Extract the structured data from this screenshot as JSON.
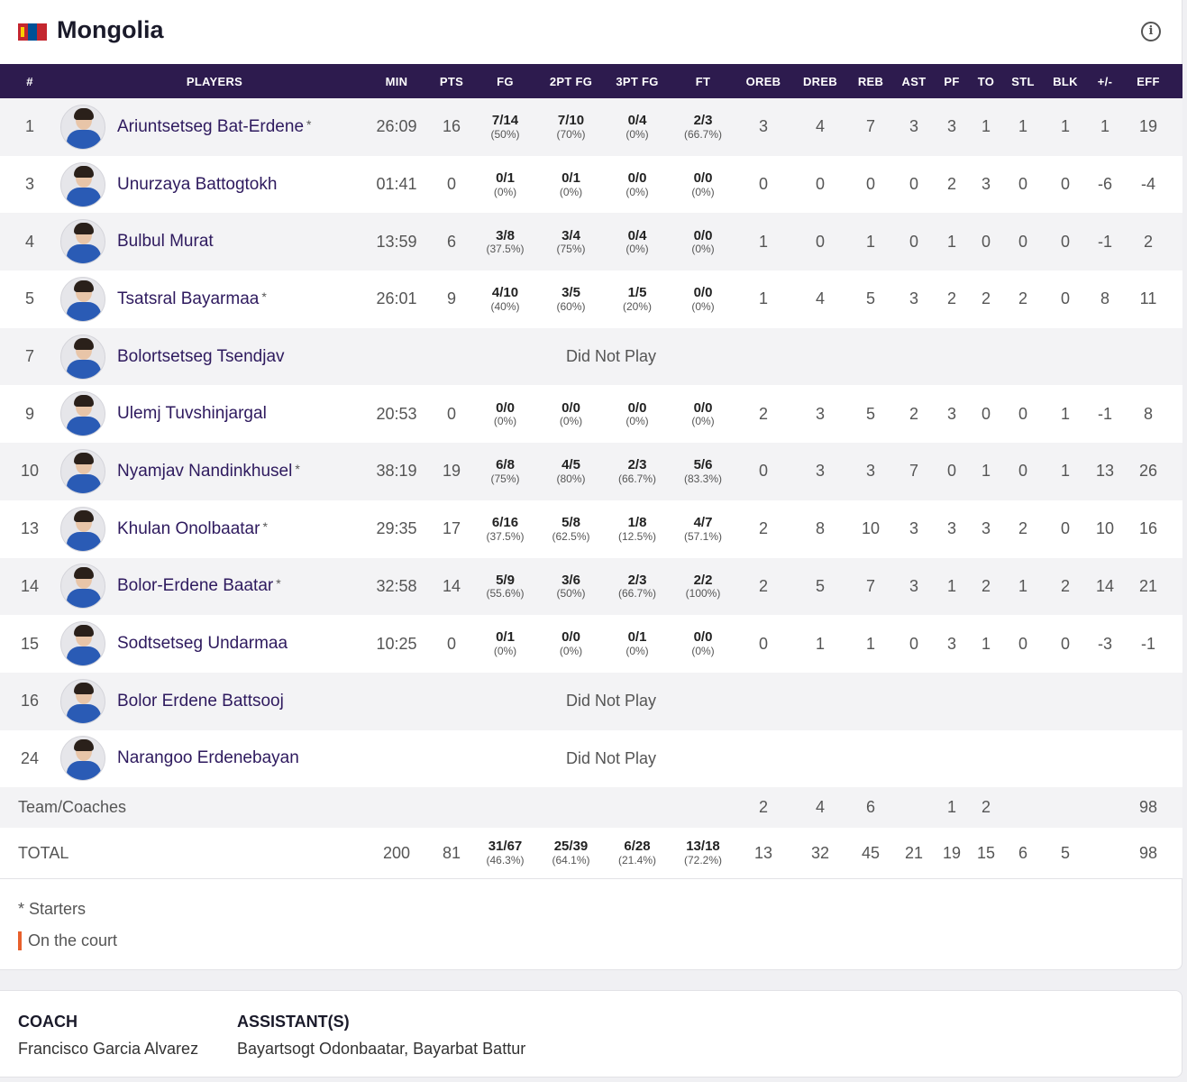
{
  "team": {
    "name": "Mongolia",
    "flag_icon": "mongolia-flag-icon",
    "info_icon": "info-icon"
  },
  "columns": [
    "#",
    "PLAYERS",
    "MIN",
    "PTS",
    "FG",
    "2PT FG",
    "3PT FG",
    "FT",
    "OREB",
    "DREB",
    "REB",
    "AST",
    "PF",
    "TO",
    "STL",
    "BLK",
    "+/-",
    "EFF"
  ],
  "players": [
    {
      "no": "1",
      "name": "Ariuntsetseg Bat-Erdene",
      "starter": "*",
      "dnp": false,
      "min": "26:09",
      "pts": "16",
      "fg": "7/14",
      "fg_pct": "(50%)",
      "p2": "7/10",
      "p2_pct": "(70%)",
      "p3": "0/4",
      "p3_pct": "(0%)",
      "ft": "2/3",
      "ft_pct": "(66.7%)",
      "oreb": "3",
      "dreb": "4",
      "reb": "7",
      "ast": "3",
      "pf": "3",
      "to": "1",
      "stl": "1",
      "blk": "1",
      "pm": "1",
      "eff": "19"
    },
    {
      "no": "3",
      "name": "Unurzaya Battogtokh",
      "starter": "",
      "dnp": false,
      "min": "01:41",
      "pts": "0",
      "fg": "0/1",
      "fg_pct": "(0%)",
      "p2": "0/1",
      "p2_pct": "(0%)",
      "p3": "0/0",
      "p3_pct": "(0%)",
      "ft": "0/0",
      "ft_pct": "(0%)",
      "oreb": "0",
      "dreb": "0",
      "reb": "0",
      "ast": "0",
      "pf": "2",
      "to": "3",
      "stl": "0",
      "blk": "0",
      "pm": "-6",
      "eff": "-4"
    },
    {
      "no": "4",
      "name": "Bulbul Murat",
      "starter": "",
      "dnp": false,
      "min": "13:59",
      "pts": "6",
      "fg": "3/8",
      "fg_pct": "(37.5%)",
      "p2": "3/4",
      "p2_pct": "(75%)",
      "p3": "0/4",
      "p3_pct": "(0%)",
      "ft": "0/0",
      "ft_pct": "(0%)",
      "oreb": "1",
      "dreb": "0",
      "reb": "1",
      "ast": "0",
      "pf": "1",
      "to": "0",
      "stl": "0",
      "blk": "0",
      "pm": "-1",
      "eff": "2"
    },
    {
      "no": "5",
      "name": "Tsatsral Bayarmaa",
      "starter": "*",
      "dnp": false,
      "min": "26:01",
      "pts": "9",
      "fg": "4/10",
      "fg_pct": "(40%)",
      "p2": "3/5",
      "p2_pct": "(60%)",
      "p3": "1/5",
      "p3_pct": "(20%)",
      "ft": "0/0",
      "ft_pct": "(0%)",
      "oreb": "1",
      "dreb": "4",
      "reb": "5",
      "ast": "3",
      "pf": "2",
      "to": "2",
      "stl": "2",
      "blk": "0",
      "pm": "8",
      "eff": "11"
    },
    {
      "no": "7",
      "name": "Bolortsetseg Tsendjav",
      "starter": "",
      "dnp": true,
      "dnp_text": "Did Not Play"
    },
    {
      "no": "9",
      "name": "Ulemj Tuvshinjargal",
      "starter": "",
      "dnp": false,
      "min": "20:53",
      "pts": "0",
      "fg": "0/0",
      "fg_pct": "(0%)",
      "p2": "0/0",
      "p2_pct": "(0%)",
      "p3": "0/0",
      "p3_pct": "(0%)",
      "ft": "0/0",
      "ft_pct": "(0%)",
      "oreb": "2",
      "dreb": "3",
      "reb": "5",
      "ast": "2",
      "pf": "3",
      "to": "0",
      "stl": "0",
      "blk": "1",
      "pm": "-1",
      "eff": "8"
    },
    {
      "no": "10",
      "name": "Nyamjav Nandinkhusel",
      "starter": "*",
      "dnp": false,
      "min": "38:19",
      "pts": "19",
      "fg": "6/8",
      "fg_pct": "(75%)",
      "p2": "4/5",
      "p2_pct": "(80%)",
      "p3": "2/3",
      "p3_pct": "(66.7%)",
      "ft": "5/6",
      "ft_pct": "(83.3%)",
      "oreb": "0",
      "dreb": "3",
      "reb": "3",
      "ast": "7",
      "pf": "0",
      "to": "1",
      "stl": "0",
      "blk": "1",
      "pm": "13",
      "eff": "26"
    },
    {
      "no": "13",
      "name": "Khulan Onolbaatar",
      "starter": "*",
      "dnp": false,
      "min": "29:35",
      "pts": "17",
      "fg": "6/16",
      "fg_pct": "(37.5%)",
      "p2": "5/8",
      "p2_pct": "(62.5%)",
      "p3": "1/8",
      "p3_pct": "(12.5%)",
      "ft": "4/7",
      "ft_pct": "(57.1%)",
      "oreb": "2",
      "dreb": "8",
      "reb": "10",
      "ast": "3",
      "pf": "3",
      "to": "3",
      "stl": "2",
      "blk": "0",
      "pm": "10",
      "eff": "16"
    },
    {
      "no": "14",
      "name": "Bolor-Erdene Baatar",
      "starter": "*",
      "dnp": false,
      "min": "32:58",
      "pts": "14",
      "fg": "5/9",
      "fg_pct": "(55.6%)",
      "p2": "3/6",
      "p2_pct": "(50%)",
      "p3": "2/3",
      "p3_pct": "(66.7%)",
      "ft": "2/2",
      "ft_pct": "(100%)",
      "oreb": "2",
      "dreb": "5",
      "reb": "7",
      "ast": "3",
      "pf": "1",
      "to": "2",
      "stl": "1",
      "blk": "2",
      "pm": "14",
      "eff": "21"
    },
    {
      "no": "15",
      "name": "Sodtsetseg Undarmaa",
      "starter": "",
      "dnp": false,
      "min": "10:25",
      "pts": "0",
      "fg": "0/1",
      "fg_pct": "(0%)",
      "p2": "0/0",
      "p2_pct": "(0%)",
      "p3": "0/1",
      "p3_pct": "(0%)",
      "ft": "0/0",
      "ft_pct": "(0%)",
      "oreb": "0",
      "dreb": "1",
      "reb": "1",
      "ast": "0",
      "pf": "3",
      "to": "1",
      "stl": "0",
      "blk": "0",
      "pm": "-3",
      "eff": "-1"
    },
    {
      "no": "16",
      "name": "Bolor Erdene Battsooj",
      "starter": "",
      "dnp": true,
      "dnp_text": "Did Not Play"
    },
    {
      "no": "24",
      "name": "Narangoo Erdenebayan",
      "starter": "",
      "dnp": true,
      "dnp_text": "Did Not Play"
    }
  ],
  "team_coaches": {
    "label": "Team/Coaches",
    "oreb": "2",
    "dreb": "4",
    "reb": "6",
    "pf": "1",
    "to": "2",
    "eff": "98"
  },
  "total": {
    "label": "TOTAL",
    "min": "200",
    "pts": "81",
    "fg": "31/67",
    "fg_pct": "(46.3%)",
    "p2": "25/39",
    "p2_pct": "(64.1%)",
    "p3": "6/28",
    "p3_pct": "(21.4%)",
    "ft": "13/18",
    "ft_pct": "(72.2%)",
    "oreb": "13",
    "dreb": "32",
    "reb": "45",
    "ast": "21",
    "pf": "19",
    "to": "15",
    "stl": "6",
    "blk": "5",
    "eff": "98"
  },
  "legend": {
    "starters": "* Starters",
    "on_court": "On the court",
    "on_court_color": "#e8602c"
  },
  "staff": {
    "coach_title": "COACH",
    "coach_name": "Francisco Garcia Alvarez",
    "assistant_title": "ASSISTANT(S)",
    "assistant_names": "Bayartsogt Odonbaatar, Bayarbat Battur"
  },
  "colors": {
    "header_bg": "#2d1b4e",
    "player_name": "#2e1a5e"
  }
}
